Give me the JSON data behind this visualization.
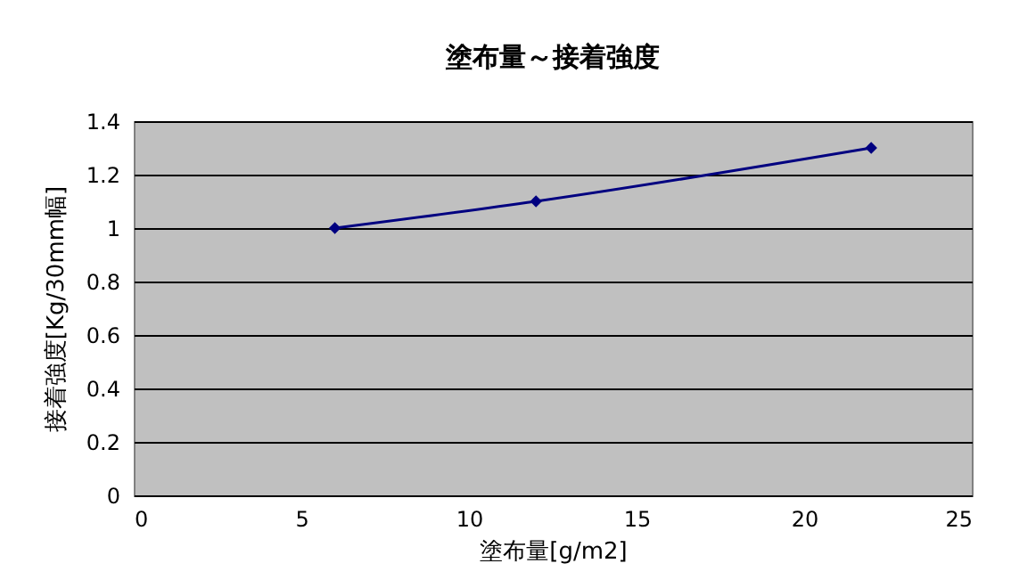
{
  "chart_data": {
    "type": "line",
    "title": "塗布量～接着強度",
    "xlabel": "塗布量[g/m2]",
    "ylabel": "接着強度[Kg/30mm幅]",
    "x": [
      6,
      12,
      22
    ],
    "series": [
      {
        "color": "#000080",
        "values": [
          1.0,
          1.1,
          1.3
        ]
      }
    ],
    "xlim": [
      0,
      25
    ],
    "xticks": [
      0,
      5,
      10,
      15,
      20,
      25
    ],
    "ylim": [
      0,
      1.4
    ],
    "yticks": [
      0,
      0.2,
      0.4,
      0.6,
      0.8,
      1,
      1.2,
      1.4
    ],
    "grid": "y",
    "marker": "diamond",
    "line_style": "solid"
  }
}
